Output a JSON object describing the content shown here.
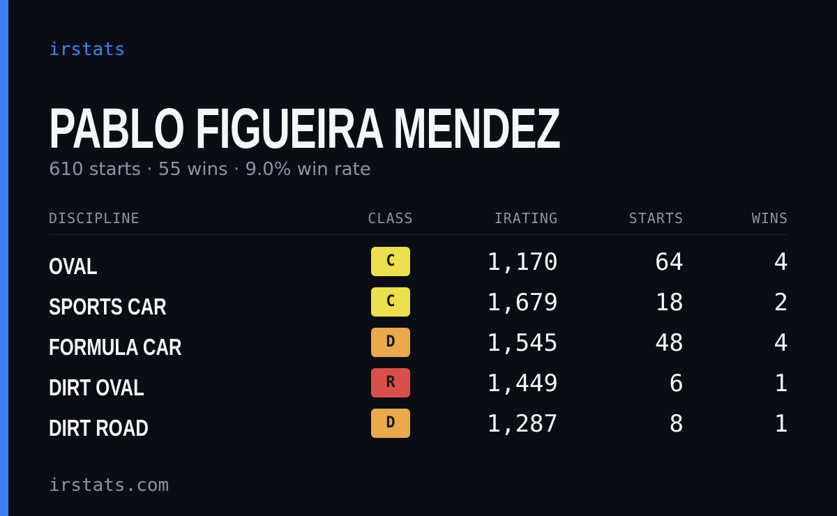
{
  "brand": "irstats",
  "header": {
    "title": "PABLO FIGUEIRA MENDEZ",
    "subtitle": "610 starts · 55 wins · 9.0% win rate"
  },
  "table": {
    "columns": [
      "DISCIPLINE",
      "CLASS",
      "IRATING",
      "STARTS",
      "WINS"
    ],
    "rows": [
      {
        "discipline": "OVAL",
        "class": "C",
        "class_color": "#ece04c",
        "irating": "1,170",
        "starts": "64",
        "wins": "4"
      },
      {
        "discipline": "SPORTS CAR",
        "class": "C",
        "class_color": "#ece04c",
        "irating": "1,679",
        "starts": "18",
        "wins": "2"
      },
      {
        "discipline": "FORMULA CAR",
        "class": "D",
        "class_color": "#e9a94c",
        "irating": "1,545",
        "starts": "48",
        "wins": "4"
      },
      {
        "discipline": "DIRT OVAL",
        "class": "R",
        "class_color": "#d9504a",
        "irating": "1,449",
        "starts": "6",
        "wins": "1"
      },
      {
        "discipline": "DIRT ROAD",
        "class": "D",
        "class_color": "#e9a94c",
        "irating": "1,287",
        "starts": "8",
        "wins": "1"
      }
    ]
  },
  "footer": "irstats.com"
}
